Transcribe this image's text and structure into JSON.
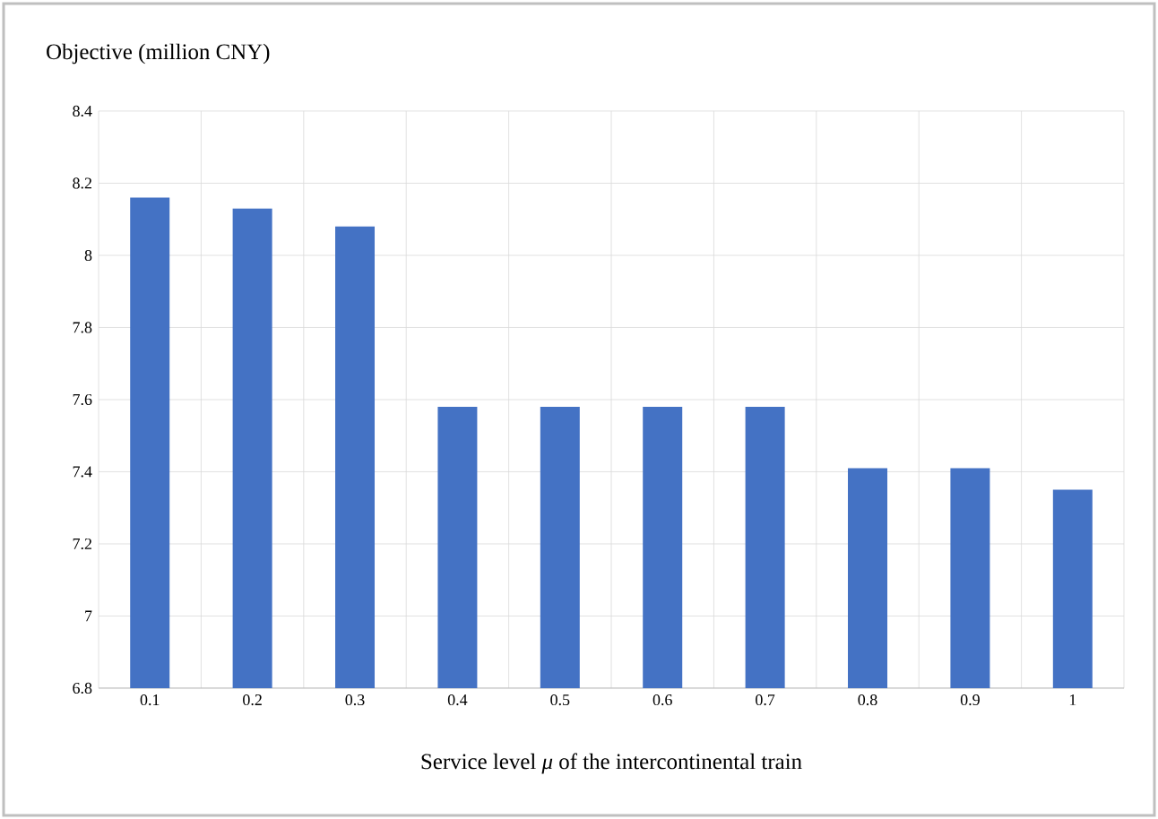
{
  "chart_data": {
    "type": "bar",
    "ylabel": "Objective (million CNY)",
    "xlabel": "Service level *μ* of the intercontinental train",
    "categories": [
      "0.1",
      "0.2",
      "0.3",
      "0.4",
      "0.5",
      "0.6",
      "0.7",
      "0.8",
      "0.9",
      "1"
    ],
    "values": [
      8.16,
      8.13,
      8.08,
      7.58,
      7.58,
      7.58,
      7.58,
      7.41,
      7.41,
      7.35
    ],
    "color": "#4472c4",
    "ylim": [
      6.8,
      8.4
    ],
    "yticks": [
      6.8,
      7,
      7.2,
      7.4,
      7.6,
      7.8,
      8,
      8.2,
      8.4
    ],
    "grid": true
  }
}
